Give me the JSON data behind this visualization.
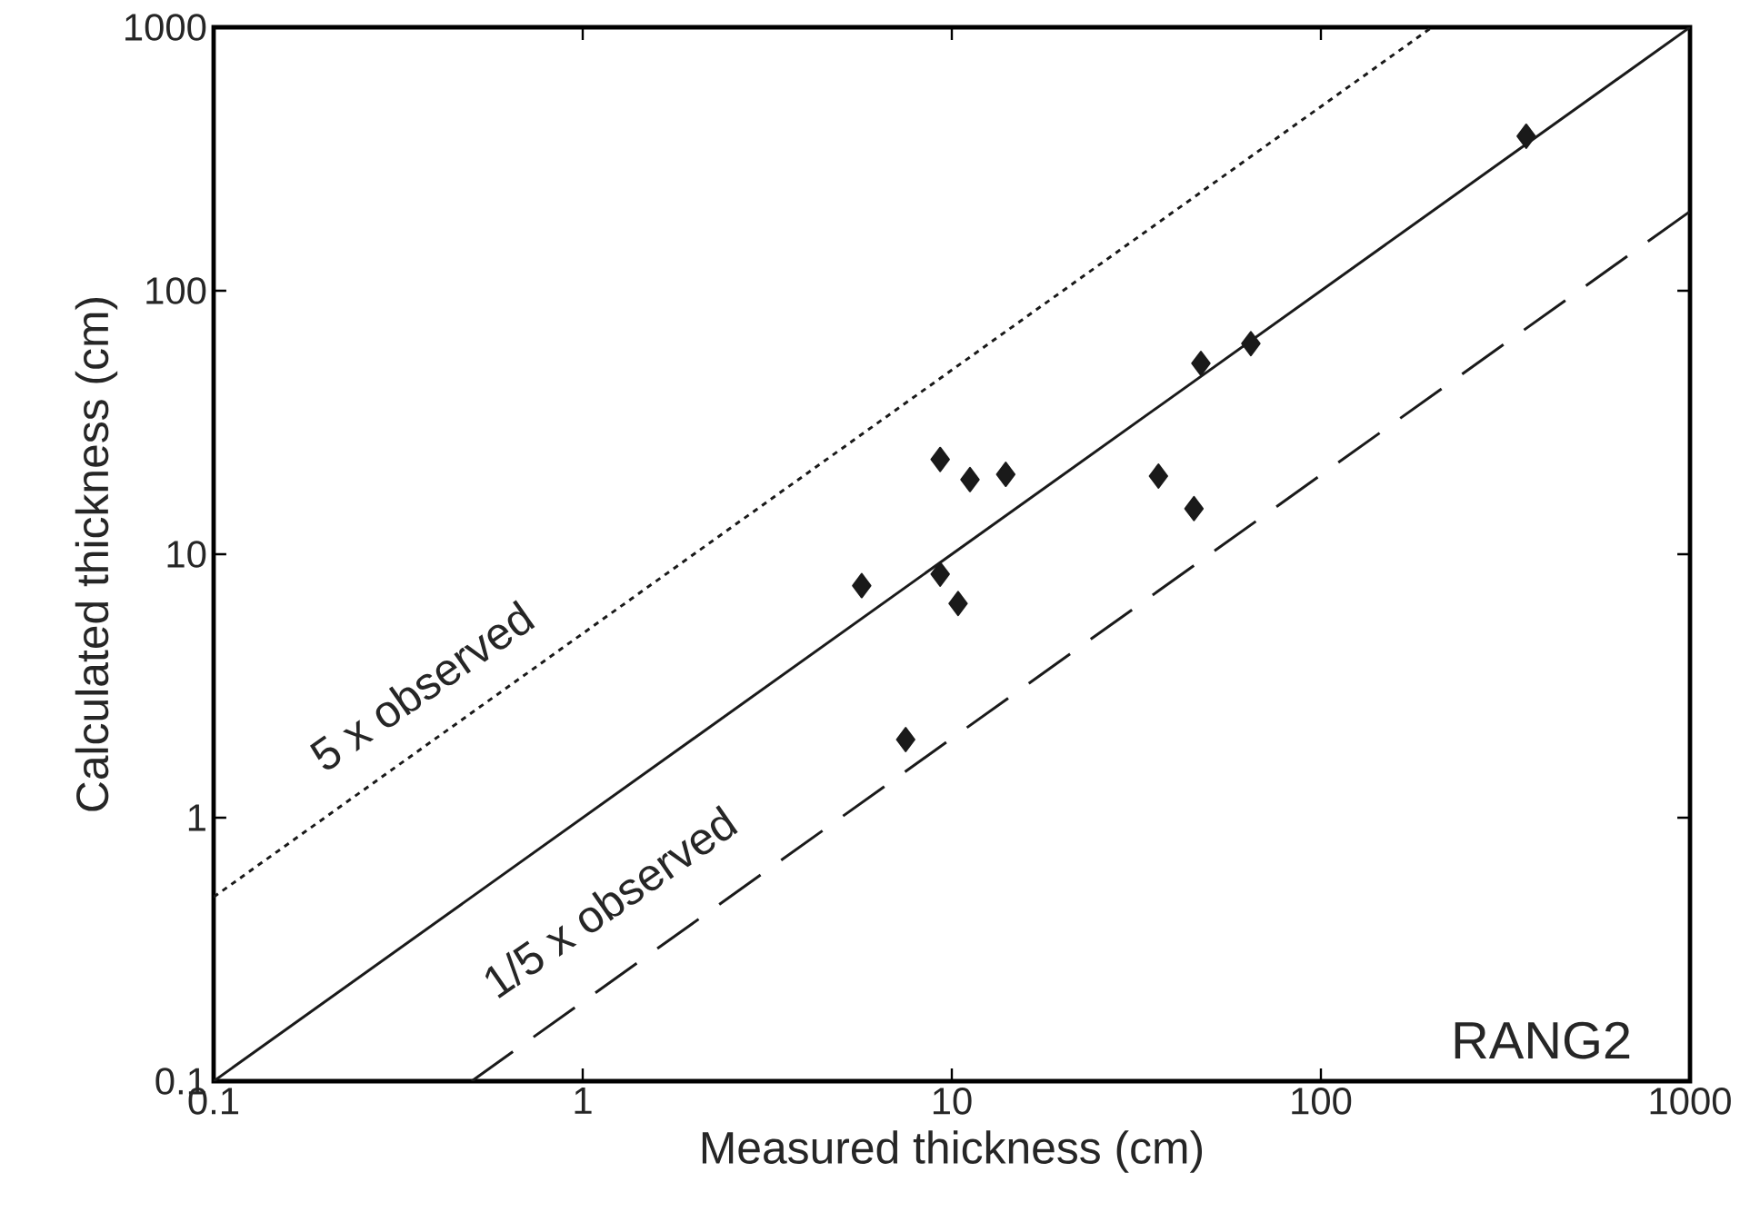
{
  "chart_data": {
    "type": "scatter",
    "xlabel": "Measured thickness (cm)",
    "ylabel": "Calculated thickness (cm)",
    "log": "xy",
    "xlim": [
      0.1,
      1000
    ],
    "ylim": [
      0.1,
      1000
    ],
    "xticks": [
      0.1,
      1,
      10,
      100,
      1000
    ],
    "yticks": [
      0.1,
      1,
      10,
      100,
      1000
    ],
    "annotations": [
      "5 x observed",
      "1/5 x observed",
      "RANG2"
    ],
    "series": [
      {
        "type": "line",
        "color": "#1a1a1a",
        "line_style": "solid",
        "marker": "none",
        "x": [
          0.1,
          1000
        ],
        "values": [
          0.1,
          1000
        ]
      },
      {
        "type": "line",
        "color": "#1a1a1a",
        "line_style": "dotted",
        "marker": "none",
        "x": [
          0.1,
          200
        ],
        "values": [
          0.5,
          1000
        ]
      },
      {
        "type": "line",
        "color": "#1a1a1a",
        "line_style": "dashed",
        "marker": "none",
        "x": [
          0.5,
          1000
        ],
        "values": [
          0.1,
          200
        ]
      },
      {
        "color": "#1a1a1a",
        "marker": "diamond",
        "x": [
          5.7,
          9.3,
          11.2,
          14.0,
          9.3,
          10.4,
          7.5,
          36.3,
          45.3,
          47.3,
          64.6,
          360
        ],
        "values": [
          7.6,
          22.9,
          19.2,
          20.1,
          8.4,
          6.5,
          1.98,
          19.8,
          14.9,
          53,
          63,
          386
        ]
      }
    ]
  }
}
